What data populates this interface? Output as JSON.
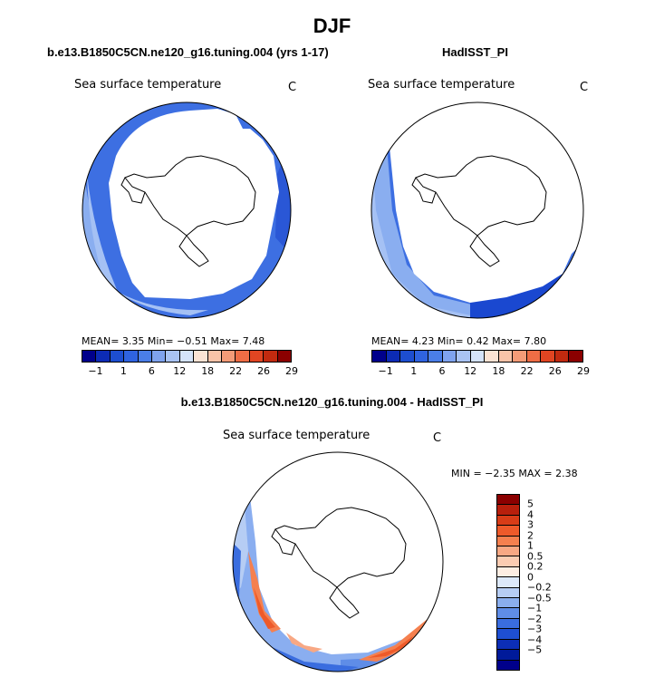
{
  "title": "DJF",
  "panels": {
    "model": {
      "title": "b.e13.B1850C5CN.ne120_g16.tuning.004 (yrs 1-17)",
      "variable": "Sea surface temperature",
      "unit": "C",
      "stats": "MEAN=    3.35   Min=   −0.51   Max=    7.48"
    },
    "obs": {
      "title": "HadISST_PI",
      "variable": "Sea surface temperature",
      "unit": "C",
      "stats": "MEAN=    4.23   Min=    0.42   Max=    7.80"
    },
    "diff": {
      "title": "b.e13.B1850C5CN.ne120_g16.tuning.004 - HadISST_PI",
      "variable": "Sea surface temperature",
      "unit": "C",
      "stats": "MIN =   −2.35 MAX =    2.38"
    }
  },
  "colorbar_abs": {
    "colors": [
      "#00008b",
      "#0c2bb5",
      "#1d4ed0",
      "#2f63e0",
      "#4a7ee8",
      "#7fa3ee",
      "#a9c3f3",
      "#d4e3fa",
      "#fbe3d4",
      "#f8c3a8",
      "#f49b77",
      "#ee6d45",
      "#e04522",
      "#c12a0f",
      "#8b0000"
    ],
    "labels": [
      "−1",
      "1",
      "6",
      "12",
      "18",
      "22",
      "26",
      "29"
    ]
  },
  "colorbar_diff": {
    "colors": [
      "#8b0000",
      "#b81f0c",
      "#d83c17",
      "#ee5a2a",
      "#f5804f",
      "#f8a884",
      "#fbccb2",
      "#fdeee3",
      "#dde9fa",
      "#b6cdf4",
      "#8aaeee",
      "#5f8de7",
      "#3a6ddf",
      "#1e4fd3",
      "#0c2eb6",
      "#001a9a",
      "#00008b"
    ],
    "labels": [
      "5",
      "4",
      "3",
      "2",
      "1",
      "0.5",
      "0.2",
      "0",
      "−0.2",
      "−0.5",
      "−1",
      "−2",
      "−3",
      "−4",
      "−5"
    ]
  }
}
